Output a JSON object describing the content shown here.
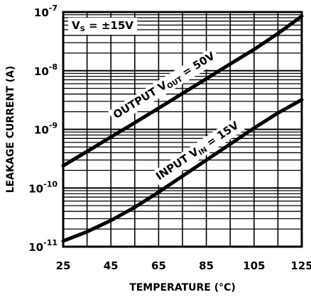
{
  "chart_data": {
    "type": "line",
    "title": "",
    "xlabel": "TEMPERATURE (°C)",
    "ylabel": "LEAKAGE CURRENT (A)",
    "xlim": [
      25,
      125
    ],
    "ylim": [
      1e-11,
      1e-07
    ],
    "yscale": "log",
    "grid": true,
    "x_ticks": [
      "25",
      "45",
      "65",
      "85",
      "105",
      "125"
    ],
    "y_ticks": [
      {
        "base": "10",
        "exp": "-7"
      },
      {
        "base": "10",
        "exp": "-8"
      },
      {
        "base": "10",
        "exp": "-9"
      },
      {
        "base": "10",
        "exp": "-10"
      },
      {
        "base": "10",
        "exp": "-11"
      }
    ],
    "annotation": {
      "main": "V",
      "sub": "S",
      "rest": " = ±15V"
    },
    "series": [
      {
        "name": "OUTPUT V_OUT = 50V",
        "label_parts": {
          "main": "OUTPUT V",
          "sub": "OUT",
          "rest": " = 50V"
        },
        "x": [
          25,
          35,
          45,
          55,
          65,
          75,
          85,
          95,
          105,
          115,
          125
        ],
        "y": [
          2.4e-10,
          4.2e-10,
          7.4e-10,
          1.3e-09,
          2.3e-09,
          4.1e-09,
          7.3e-09,
          1.3e-08,
          2.3e-08,
          4.3e-08,
          8.5e-08
        ]
      },
      {
        "name": "INPUT V_IN = 15V",
        "label_parts": {
          "main": "INPUT V",
          "sub": "IN",
          "rest": " = 15V"
        },
        "x": [
          25,
          35,
          45,
          55,
          65,
          75,
          85,
          95,
          105,
          115,
          125
        ],
        "y": [
          1.25e-11,
          1.8e-11,
          2.8e-11,
          4.7e-11,
          8.5e-11,
          1.6e-10,
          3e-10,
          5.6e-10,
          1.05e-09,
          1.9e-09,
          3.2e-09
        ]
      }
    ]
  }
}
